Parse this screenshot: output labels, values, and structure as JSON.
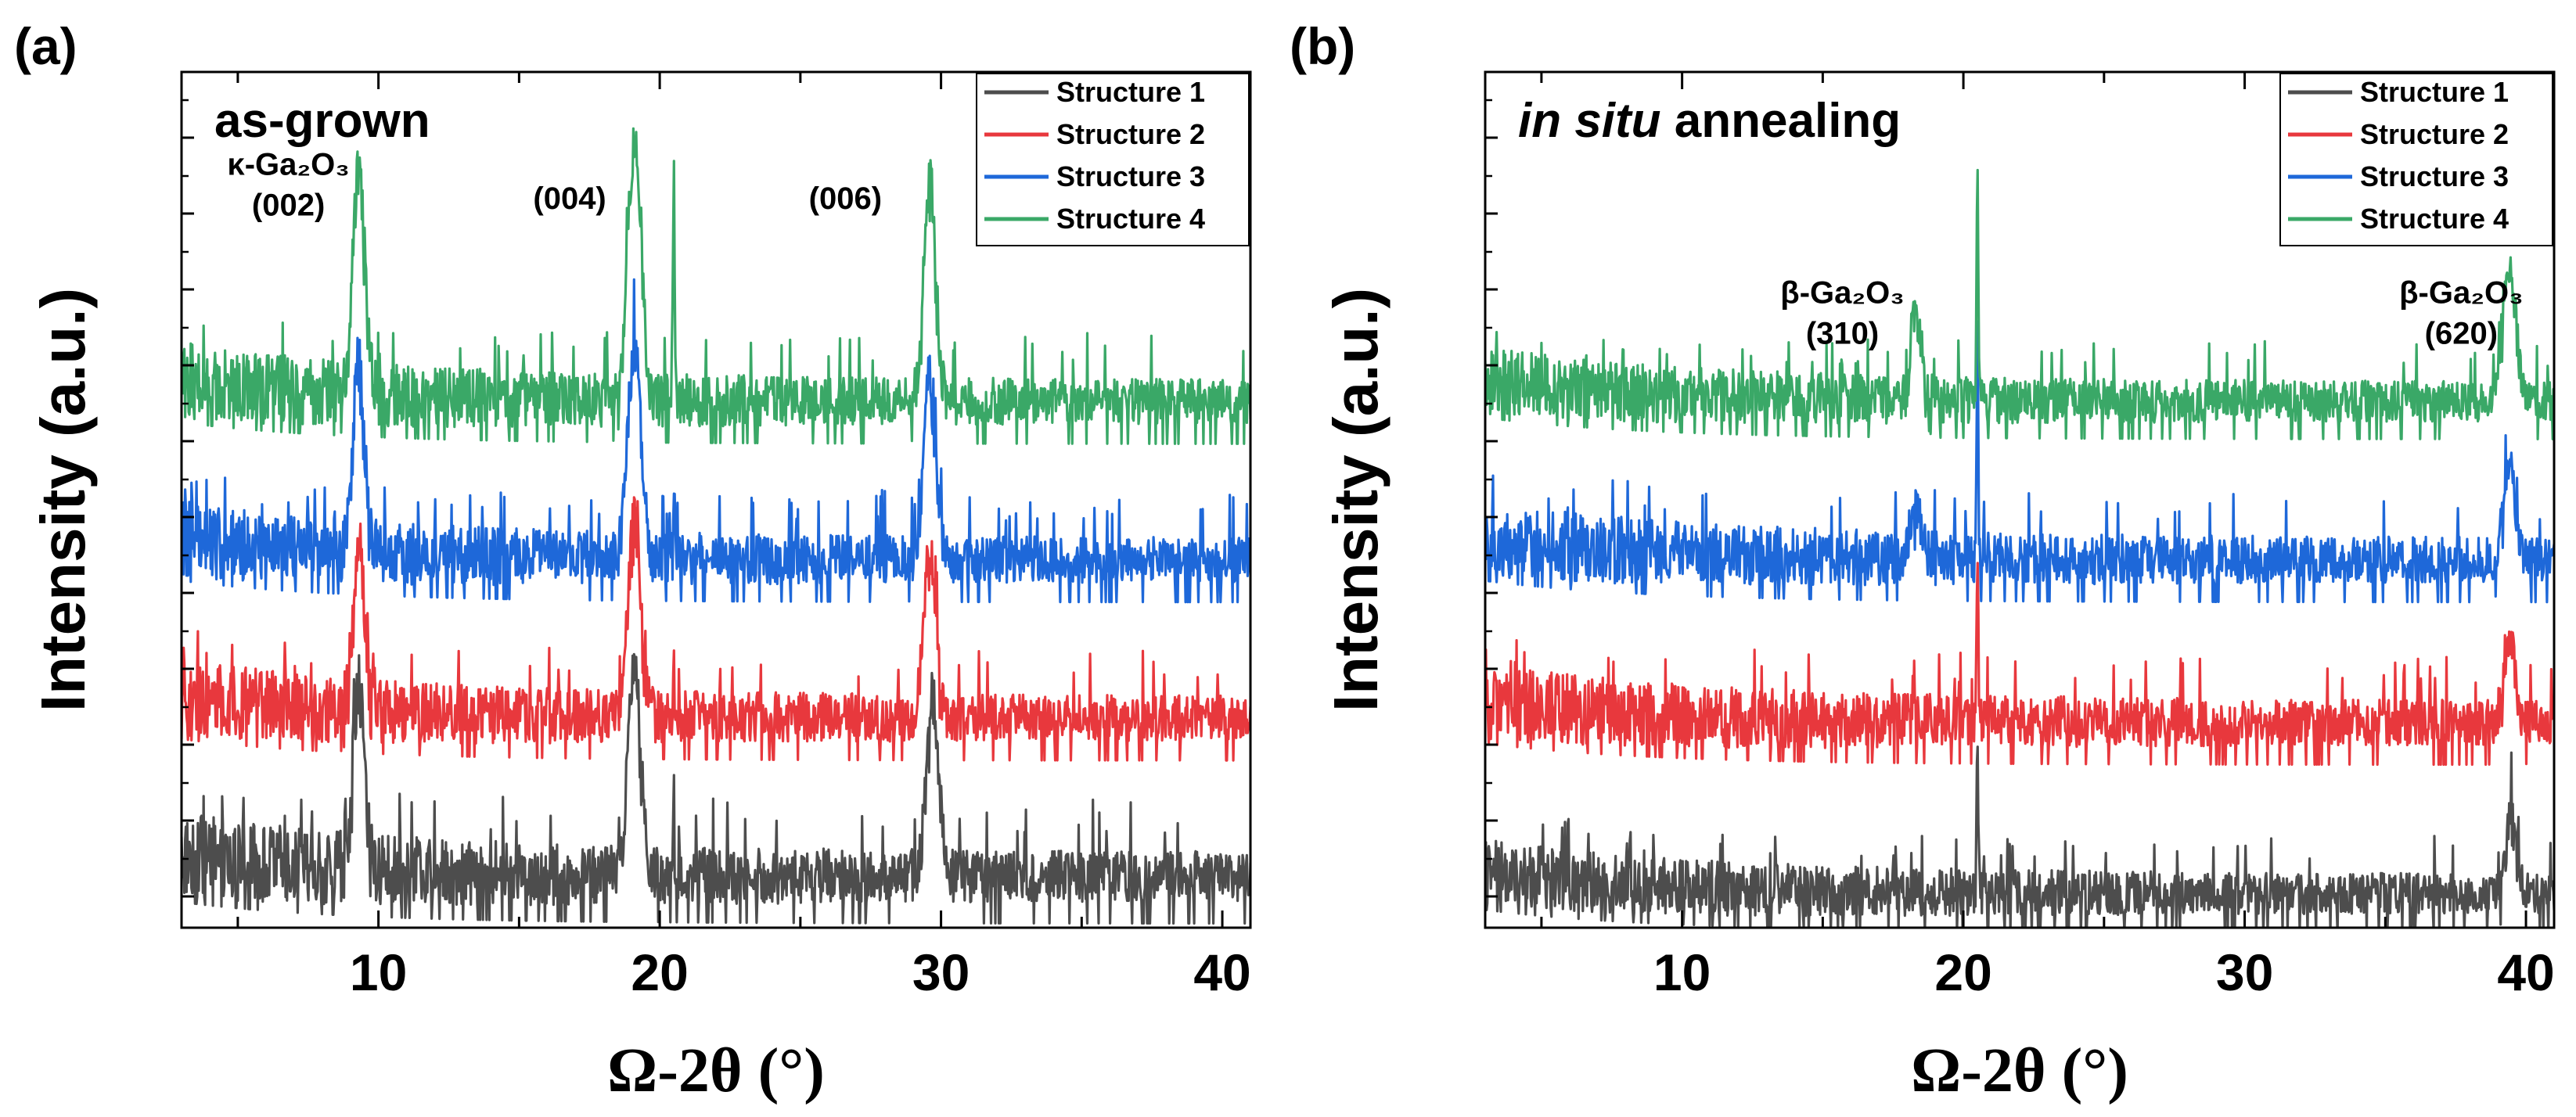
{
  "chart_data": [
    {
      "type": "line",
      "panel_label": "(a)",
      "title": "as-grown",
      "xlabel": "Ω-2θ (°)",
      "ylabel": "Intensity (a.u.)",
      "xlim": [
        3,
        41
      ],
      "xticks": [
        10,
        20,
        30,
        40
      ],
      "y_scale": "log, offset stacked, arbitrary units",
      "legend_position": "top-right",
      "series": [
        {
          "name": "Structure 1",
          "color": "#4d4d4d",
          "baseline": 0.6,
          "noise_band": 1.0,
          "peaks": [
            {
              "x": 9.3,
              "h": 2.1,
              "w": 0.28
            },
            {
              "x": 19.1,
              "h": 2.4,
              "w": 0.32
            },
            {
              "x": 20.5,
              "h": 0.5,
              "w": 0.04
            },
            {
              "x": 29.7,
              "h": 2.1,
              "w": 0.3
            }
          ]
        },
        {
          "name": "Structure 2",
          "color": "#e8383d",
          "baseline": 2.45,
          "noise_band": 0.9,
          "peaks": [
            {
              "x": 9.3,
              "h": 2.0,
              "w": 0.28
            },
            {
              "x": 19.1,
              "h": 2.3,
              "w": 0.32
            },
            {
              "x": 20.5,
              "h": 0.5,
              "w": 0.04
            },
            {
              "x": 29.6,
              "h": 2.0,
              "w": 0.3
            }
          ]
        },
        {
          "name": "Structure 3",
          "color": "#1e68d9",
          "baseline": 4.3,
          "noise_band": 0.9,
          "peaks": [
            {
              "x": 9.3,
              "h": 2.2,
              "w": 0.28
            },
            {
              "x": 19.1,
              "h": 2.5,
              "w": 0.32
            },
            {
              "x": 20.5,
              "h": 0.9,
              "w": 0.04
            },
            {
              "x": 29.6,
              "h": 2.2,
              "w": 0.3
            }
          ]
        },
        {
          "name": "Structure 4",
          "color": "#3aa867",
          "baseline": 6.15,
          "noise_band": 0.9,
          "peaks": [
            {
              "x": 9.3,
              "h": 2.6,
              "w": 0.3
            },
            {
              "x": 19.1,
              "h": 3.0,
              "w": 0.33
            },
            {
              "x": 20.5,
              "h": 2.9,
              "w": 0.04
            },
            {
              "x": 29.6,
              "h": 2.6,
              "w": 0.3
            }
          ]
        }
      ],
      "annotations": [
        {
          "lines": [
            "κ-Ga₂O₃",
            "(002)"
          ],
          "x": 6.8,
          "y": 8.8
        },
        {
          "lines": [
            "(004)"
          ],
          "x": 16.8,
          "y": 8.4
        },
        {
          "lines": [
            "(006)"
          ],
          "x": 26.6,
          "y": 8.4
        }
      ]
    },
    {
      "type": "line",
      "panel_label": "(b)",
      "title_italic": "in situ",
      "title_rest": " annealing",
      "xlabel": "Ω-2θ (°)",
      "ylabel": "Intensity (a.u.)",
      "xlim": [
        3,
        41
      ],
      "xticks": [
        10,
        20,
        30,
        40
      ],
      "y_scale": "log, offset stacked, arbitrary units",
      "legend_position": "top-right",
      "series": [
        {
          "name": "Structure 1",
          "color": "#4d4d4d",
          "baseline": 0.4,
          "noise_band": 0.8,
          "peaks": [
            {
              "x": 20.5,
              "h": 1.8,
              "w": 0.04
            },
            {
              "x": 39.5,
              "h": 1.0,
              "w": 0.25
            }
          ]
        },
        {
          "name": "Structure 2",
          "color": "#e8383d",
          "baseline": 2.4,
          "noise_band": 0.9,
          "peaks": [
            {
              "x": 20.5,
              "h": 1.8,
              "w": 0.04
            },
            {
              "x": 39.4,
              "h": 1.0,
              "w": 0.28
            }
          ]
        },
        {
          "name": "Structure 3",
          "color": "#1e68d9",
          "baseline": 4.3,
          "noise_band": 0.9,
          "peaks": [
            {
              "x": 18.3,
              "h": 0.6,
              "w": 0.25
            },
            {
              "x": 20.5,
              "h": 2.6,
              "w": 0.04
            },
            {
              "x": 39.4,
              "h": 1.2,
              "w": 0.28
            }
          ]
        },
        {
          "name": "Structure 4",
          "color": "#3aa867",
          "baseline": 6.15,
          "noise_band": 0.8,
          "peaks": [
            {
              "x": 18.3,
              "h": 1.0,
              "w": 0.3
            },
            {
              "x": 20.5,
              "h": 3.0,
              "w": 0.04
            },
            {
              "x": 39.4,
              "h": 1.6,
              "w": 0.33
            }
          ]
        }
      ],
      "annotations": [
        {
          "lines": [
            "β-Ga₂O₃",
            "(310)"
          ],
          "x": 15.7,
          "y": 7.3
        },
        {
          "lines": [
            "β-Ga₂O₃",
            "(620)"
          ],
          "x": 37.7,
          "y": 7.3
        }
      ]
    }
  ]
}
